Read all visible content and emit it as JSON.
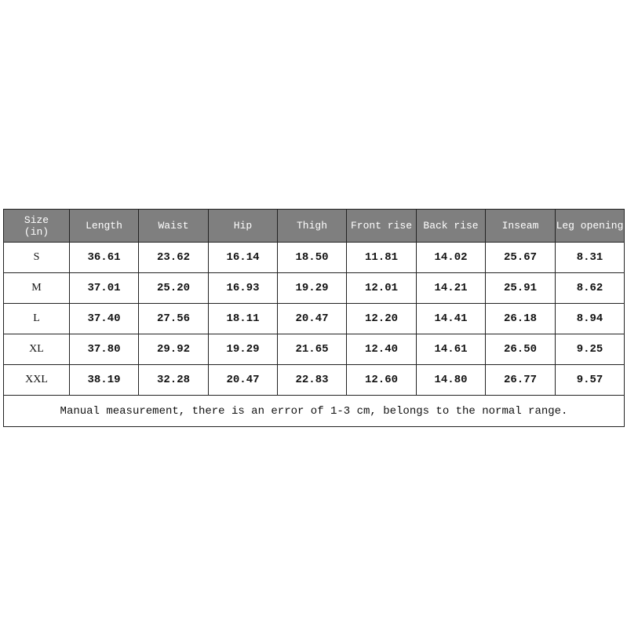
{
  "table": {
    "headers": [
      "Size\n(in)",
      "Length",
      "Waist",
      "Hip",
      "Thigh",
      "Front rise",
      "Back rise",
      "Inseam",
      "Leg opening"
    ],
    "header_color": "#7f7f7f",
    "rows": [
      [
        "S",
        "36.61",
        "23.62",
        "16.14",
        "18.50",
        "11.81",
        "14.02",
        "25.67",
        "8.31"
      ],
      [
        "M",
        "37.01",
        "25.20",
        "16.93",
        "19.29",
        "12.01",
        "14.21",
        "25.91",
        "8.62"
      ],
      [
        "L",
        "37.40",
        "27.56",
        "18.11",
        "20.47",
        "12.20",
        "14.41",
        "26.18",
        "8.94"
      ],
      [
        "XL",
        "37.80",
        "29.92",
        "19.29",
        "21.65",
        "12.40",
        "14.61",
        "26.50",
        "9.25"
      ],
      [
        "XXL",
        "38.19",
        "32.28",
        "20.47",
        "22.83",
        "12.60",
        "14.80",
        "26.77",
        "9.57"
      ]
    ],
    "note": "Manual measurement, there is an error of 1-3 cm, belongs to the normal range."
  }
}
